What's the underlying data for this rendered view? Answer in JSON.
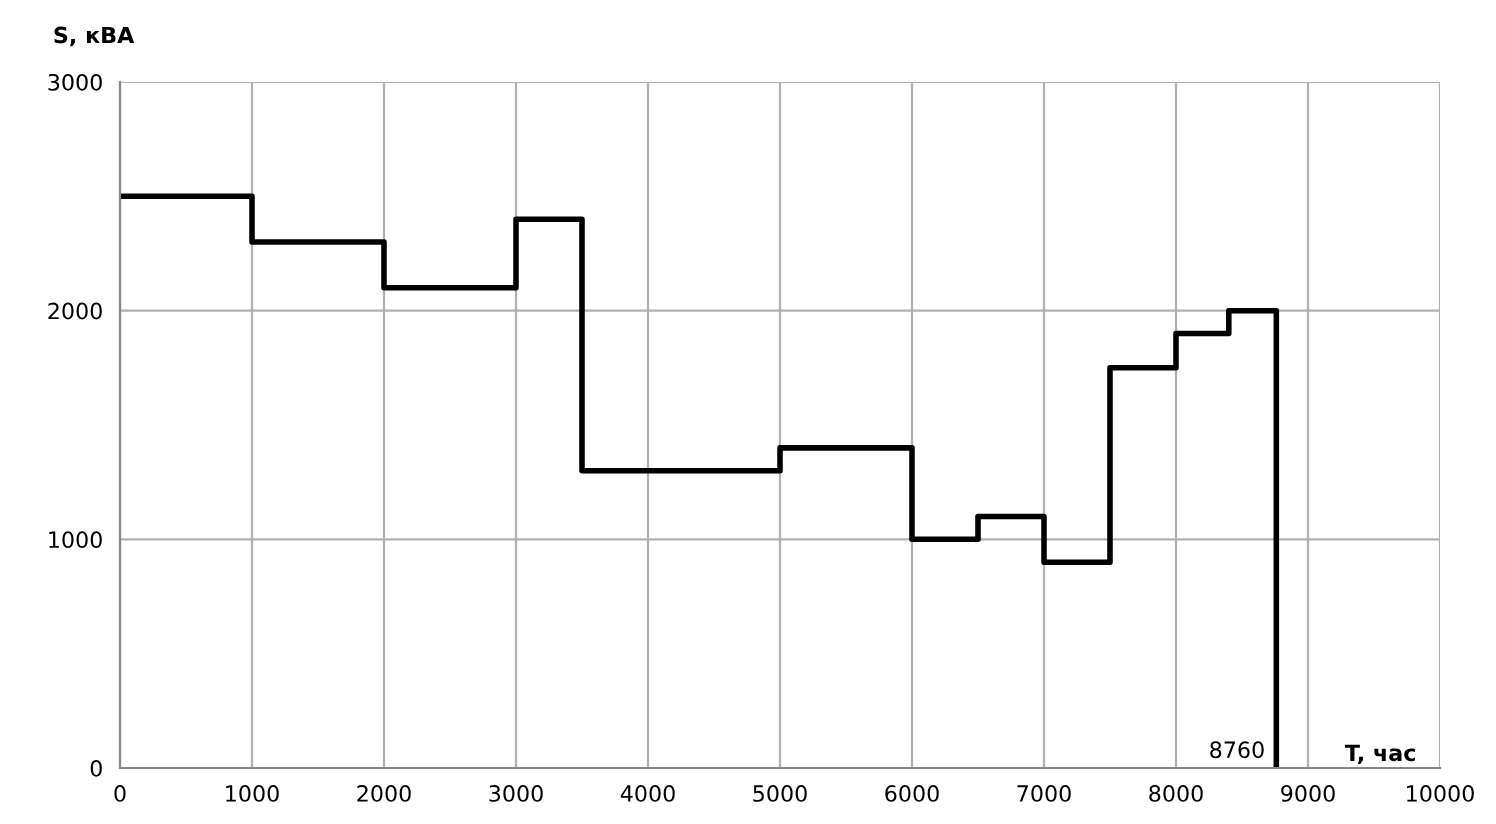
{
  "chart_data": {
    "type": "step",
    "ylabel": "S, кВА",
    "xlabel": "T, час",
    "x": [
      0,
      1000,
      2000,
      3000,
      3500,
      5000,
      6000,
      6500,
      7000,
      7500,
      8000,
      8400,
      8760
    ],
    "series": [
      {
        "color": "#000000",
        "values": [
          2500,
          2300,
          2100,
          2400,
          1300,
          1400,
          1000,
          1100,
          900,
          1750,
          1900,
          2000,
          0
        ]
      }
    ],
    "xlim": [
      0,
      10000
    ],
    "xticks": [
      0,
      1000,
      2000,
      3000,
      4000,
      5000,
      6000,
      7000,
      8000,
      9000,
      10000
    ],
    "ylim": [
      0,
      3000
    ],
    "yticks": [
      0,
      1000,
      2000,
      3000
    ],
    "annotations": [
      {
        "text": "8760",
        "x": 8760,
        "y": 0
      }
    ],
    "grid": true
  }
}
